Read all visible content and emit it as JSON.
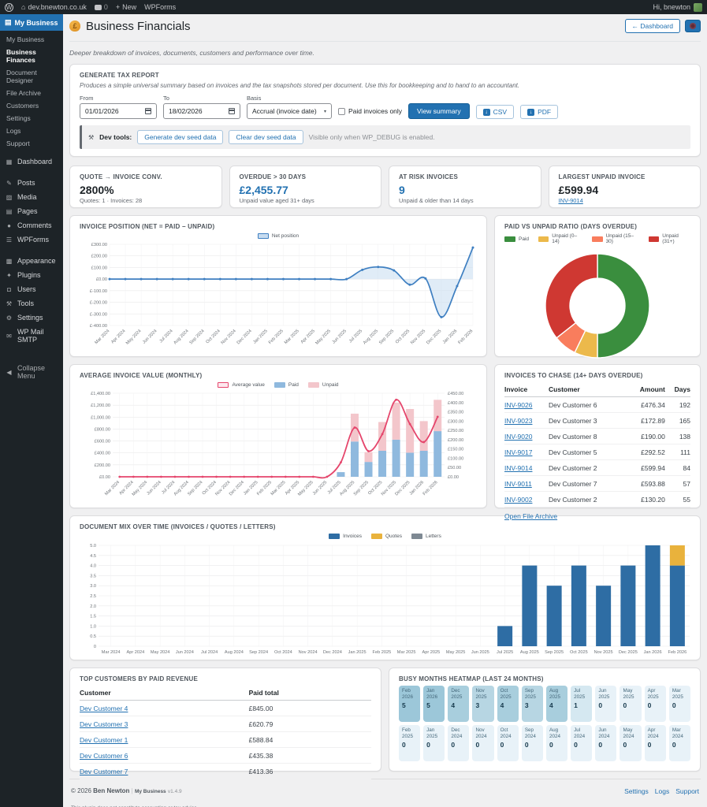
{
  "admin_bar": {
    "wp_logo": "W",
    "site_name": "dev.bnewton.co.uk",
    "comments_count": "0",
    "new_label": "New",
    "wpforms_label": "WPForms",
    "greeting": "Hi, bnewton"
  },
  "sidebar": {
    "top_item": "My Business",
    "submenu": [
      "My Business",
      "Business Finances",
      "Document Designer",
      "File Archive",
      "Customers",
      "Settings",
      "Logs",
      "Support"
    ],
    "current_submenu": "Business Finances",
    "items": [
      {
        "label": "Dashboard",
        "icon": "dashboard-icon",
        "glyph": "▦",
        "group_gap_before": false
      },
      {
        "label": "Posts",
        "icon": "posts-icon",
        "glyph": "✎",
        "group_gap_before": true
      },
      {
        "label": "Media",
        "icon": "media-icon",
        "glyph": "▨",
        "group_gap_before": false
      },
      {
        "label": "Pages",
        "icon": "pages-icon",
        "glyph": "▤",
        "group_gap_before": false
      },
      {
        "label": "Comments",
        "icon": "comments-icon",
        "glyph": "●",
        "group_gap_before": false
      },
      {
        "label": "WPForms",
        "icon": "wpforms-icon",
        "glyph": "☰",
        "group_gap_before": false
      },
      {
        "label": "Appearance",
        "icon": "appearance-icon",
        "glyph": "▩",
        "group_gap_before": true
      },
      {
        "label": "Plugins",
        "icon": "plugins-icon",
        "glyph": "✦",
        "group_gap_before": false
      },
      {
        "label": "Users",
        "icon": "users-icon",
        "glyph": "◘",
        "group_gap_before": false
      },
      {
        "label": "Tools",
        "icon": "tools-icon",
        "glyph": "⚒",
        "group_gap_before": false
      },
      {
        "label": "Settings",
        "icon": "settings-icon",
        "glyph": "⚙",
        "group_gap_before": false
      },
      {
        "label": "WP Mail SMTP",
        "icon": "mail-icon",
        "glyph": "✉",
        "group_gap_before": false
      },
      {
        "label": "Collapse Menu",
        "icon": "collapse-icon",
        "glyph": "◀",
        "group_gap_before": true
      }
    ]
  },
  "header": {
    "title": "Business Financials",
    "money_icon_glyph": "£",
    "dashboard_button": "← Dashboard"
  },
  "intro_text": "Deeper breakdown of invoices, documents, customers and performance over time.",
  "tax_report": {
    "title": "GENERATE TAX REPORT",
    "description": "Produces a simple universal summary based on invoices and the tax snapshots stored per document. Use this for bookkeeping and to hand to an accountant.",
    "from_label": "From",
    "from_value": "01/01/2026",
    "to_label": "To",
    "to_value": "18/02/2026",
    "basis_label": "Basis",
    "basis_value": "Accrual (invoice date)",
    "paid_only_label": "Paid invoices only",
    "view_summary_button": "View summary",
    "csv_button": "CSV",
    "pdf_button": "PDF",
    "dev_tools_label": "Dev tools:",
    "generate_seed_button": "Generate dev seed data",
    "clear_seed_button": "Clear dev seed data",
    "dev_note": "Visible only when WP_DEBUG is enabled."
  },
  "kpis": [
    {
      "title": "QUOTE → INVOICE CONV.",
      "value": "2800%",
      "sub": "Quotes: 1 · Invoices: 28",
      "value_color": "#1d2327"
    },
    {
      "title": "OVERDUE > 30 DAYS",
      "value": "£2,455.77",
      "sub": "Unpaid value aged 31+ days",
      "value_color": "#2271b1"
    },
    {
      "title": "AT RISK INVOICES",
      "value": "9",
      "sub": "Unpaid & older than 14 days",
      "value_color": "#2271b1"
    },
    {
      "title": "LARGEST UNPAID INVOICE",
      "value": "£599.94",
      "sub_link": "INV-9014",
      "value_color": "#1d2327"
    }
  ],
  "chart_data": [
    {
      "id": "net_position",
      "type": "line",
      "title": "INVOICE POSITION (NET = PAID − UNPAID)",
      "legend": [
        "Net position"
      ],
      "x": [
        "Mar 2024",
        "Apr 2024",
        "May 2024",
        "Jun 2024",
        "Jul 2024",
        "Aug 2024",
        "Sep 2024",
        "Oct 2024",
        "Nov 2024",
        "Dec 2024",
        "Jan 2025",
        "Feb 2025",
        "Mar 2025",
        "Apr 2025",
        "May 2025",
        "Jun 2025",
        "Jul 2025",
        "Aug 2025",
        "Sep 2025",
        "Oct 2025",
        "Nov 2025",
        "Dec 2025",
        "Jan 2026",
        "Feb 2026"
      ],
      "values": [
        0,
        0,
        0,
        0,
        0,
        0,
        0,
        0,
        0,
        0,
        0,
        0,
        0,
        0,
        0,
        0,
        80,
        105,
        75,
        -48,
        5,
        -328,
        -60,
        272
      ],
      "ylim": [
        -400,
        300
      ],
      "ytick": 100,
      "line_color": "#3e7fc1",
      "fill_color": "#c7dcf0"
    },
    {
      "id": "paid_ratio",
      "type": "pie",
      "title": "PAID VS UNPAID RATIO (DAYS OVERDUE)",
      "labels": [
        "Paid",
        "Unpaid (0–14)",
        "Unpaid (15–30)",
        "Unpaid (31+)"
      ],
      "values_pct": [
        50,
        7.2,
        7.2,
        35.6
      ],
      "colors": [
        "#3a8e3e",
        "#ecb94b",
        "#f97d5d",
        "#cf3832"
      ],
      "donut_hole_ratio": 0.53
    },
    {
      "id": "avg_invoice_value",
      "type": "bar+line",
      "title": "AVERAGE INVOICE VALUE (MONTHLY)",
      "categories": [
        "Mar 2024",
        "Apr 2024",
        "May 2024",
        "Jun 2024",
        "Jul 2024",
        "Aug 2024",
        "Sep 2024",
        "Oct 2024",
        "Nov 2024",
        "Dec 2024",
        "Jan 2025",
        "Feb 2025",
        "Mar 2025",
        "Apr 2025",
        "May 2025",
        "Jun 2025",
        "Jul 2025",
        "Aug 2025",
        "Sep 2025",
        "Oct 2025",
        "Nov 2025",
        "Dec 2025",
        "Jan 2026",
        "Feb 2026"
      ],
      "series": [
        {
          "name": "Average value",
          "axis": "right",
          "kind": "line",
          "color": "#e5466c",
          "values": [
            0,
            0,
            0,
            0,
            0,
            0,
            0,
            0,
            0,
            0,
            0,
            0,
            0,
            0,
            0,
            0,
            78,
            265,
            138,
            230,
            415,
            284,
            187,
            323
          ]
        },
        {
          "name": "Paid",
          "axis": "left",
          "kind": "bar",
          "color": "#8fb9de",
          "values": [
            0,
            0,
            0,
            0,
            0,
            0,
            0,
            0,
            0,
            0,
            0,
            0,
            0,
            0,
            0,
            0,
            78,
            591,
            249,
            436,
            622,
            404,
            436,
            765
          ]
        },
        {
          "name": "Unpaid",
          "axis": "left",
          "kind": "bar",
          "color": "#f3c6cb",
          "values": [
            0,
            0,
            0,
            0,
            0,
            0,
            0,
            0,
            0,
            0,
            0,
            0,
            0,
            0,
            0,
            0,
            0,
            467,
            165,
            482,
            622,
            732,
            497,
            525
          ]
        }
      ],
      "ylim_left": [
        0,
        1400
      ],
      "ytick_left": 200,
      "ylim_right": [
        0,
        450
      ],
      "ytick_right": 50
    },
    {
      "id": "doc_mix",
      "type": "bar",
      "title": "DOCUMENT MIX OVER TIME (INVOICES / QUOTES / LETTERS)",
      "categories": [
        "Mar 2024",
        "Apr 2024",
        "May 2024",
        "Jun 2024",
        "Jul 2024",
        "Aug 2024",
        "Sep 2024",
        "Oct 2024",
        "Nov 2024",
        "Dec 2024",
        "Jan 2025",
        "Feb 2025",
        "Mar 2025",
        "Apr 2025",
        "May 2025",
        "Jun 2025",
        "Jul 2025",
        "Aug 2025",
        "Sep 2025",
        "Oct 2025",
        "Nov 2025",
        "Dec 2025",
        "Jan 2026",
        "Feb 2026"
      ],
      "series": [
        {
          "name": "Invoices",
          "color": "#2e6da4",
          "values": [
            0,
            0,
            0,
            0,
            0,
            0,
            0,
            0,
            0,
            0,
            0,
            0,
            0,
            0,
            0,
            0,
            1,
            4,
            3,
            4,
            3,
            4,
            5,
            4
          ]
        },
        {
          "name": "Quotes",
          "color": "#e9b23c",
          "values": [
            0,
            0,
            0,
            0,
            0,
            0,
            0,
            0,
            0,
            0,
            0,
            0,
            0,
            0,
            0,
            0,
            0,
            0,
            0,
            0,
            0,
            0,
            0,
            1
          ]
        },
        {
          "name": "Letters",
          "color": "#7e8993",
          "values": [
            0,
            0,
            0,
            0,
            0,
            0,
            0,
            0,
            0,
            0,
            0,
            0,
            0,
            0,
            0,
            0,
            0,
            0,
            0,
            0,
            0,
            0,
            0,
            0
          ]
        }
      ],
      "ylim": [
        0,
        5
      ],
      "ytick": 0.5,
      "stacked": true
    }
  ],
  "invoices_to_chase": {
    "title": "INVOICES TO CHASE (14+ DAYS OVERDUE)",
    "headers": [
      "Invoice",
      "Customer",
      "Amount",
      "Days"
    ],
    "rows": [
      {
        "invoice": "INV-9026",
        "customer": "Dev Customer 6",
        "amount": "£476.34",
        "days": "192"
      },
      {
        "invoice": "INV-9023",
        "customer": "Dev Customer 3",
        "amount": "£172.89",
        "days": "165"
      },
      {
        "invoice": "INV-9020",
        "customer": "Dev Customer 8",
        "amount": "£190.00",
        "days": "138"
      },
      {
        "invoice": "INV-9017",
        "customer": "Dev Customer 5",
        "amount": "£292.52",
        "days": "111"
      },
      {
        "invoice": "INV-9014",
        "customer": "Dev Customer 2",
        "amount": "£599.94",
        "days": "84"
      },
      {
        "invoice": "INV-9011",
        "customer": "Dev Customer 7",
        "amount": "£593.88",
        "days": "57"
      },
      {
        "invoice": "INV-9002",
        "customer": "Dev Customer 2",
        "amount": "£130.20",
        "days": "55"
      }
    ],
    "footer_link": "Open File Archive"
  },
  "top_customers": {
    "title": "TOP CUSTOMERS BY PAID REVENUE",
    "headers": [
      "Customer",
      "Paid total"
    ],
    "rows": [
      {
        "customer": "Dev Customer 4",
        "paid_total": "£845.00"
      },
      {
        "customer": "Dev Customer 3",
        "paid_total": "£620.79"
      },
      {
        "customer": "Dev Customer 1",
        "paid_total": "£588.84"
      },
      {
        "customer": "Dev Customer 6",
        "paid_total": "£435.38"
      },
      {
        "customer": "Dev Customer 7",
        "paid_total": "£413.36"
      }
    ]
  },
  "heatmap": {
    "title": "BUSY MONTHS HEATMAP (LAST 24 MONTHS)",
    "colors": {
      "5": "#9cc7d9",
      "4": "#a8cedd",
      "3": "#b7d6e3",
      "1": "#d5e8f1",
      "0": "#e8f2f8"
    },
    "cells": [
      {
        "label": "Feb 2026",
        "value": 5
      },
      {
        "label": "Jan 2026",
        "value": 5
      },
      {
        "label": "Dec 2025",
        "value": 4
      },
      {
        "label": "Nov 2025",
        "value": 3
      },
      {
        "label": "Oct 2025",
        "value": 4
      },
      {
        "label": "Sep 2025",
        "value": 3
      },
      {
        "label": "Aug 2025",
        "value": 4
      },
      {
        "label": "Jul 2025",
        "value": 1
      },
      {
        "label": "Jun 2025",
        "value": 0
      },
      {
        "label": "May 2025",
        "value": 0
      },
      {
        "label": "Apr 2025",
        "value": 0
      },
      {
        "label": "Mar 2025",
        "value": 0
      },
      {
        "label": "Feb 2025",
        "value": 0
      },
      {
        "label": "Jan 2025",
        "value": 0
      },
      {
        "label": "Dec 2024",
        "value": 0
      },
      {
        "label": "Nov 2024",
        "value": 0
      },
      {
        "label": "Oct 2024",
        "value": 0
      },
      {
        "label": "Sep 2024",
        "value": 0
      },
      {
        "label": "Aug 2024",
        "value": 0
      },
      {
        "label": "Jul 2024",
        "value": 0
      },
      {
        "label": "Jun 2024",
        "value": 0
      },
      {
        "label": "May 2024",
        "value": 0
      },
      {
        "label": "Apr 2024",
        "value": 0
      },
      {
        "label": "Mar 2024",
        "value": 0
      }
    ]
  },
  "footer": {
    "copyright_prefix": "© 2026",
    "author": "Ben Newton",
    "separator": "|",
    "plugin_name": "My Business",
    "version": "v1.4.9",
    "links": [
      "Settings",
      "Logs",
      "Support"
    ],
    "disclaimer_line1": "This plugin does not constitute accounting or tax advice.",
    "disclaimer_line2": "Users are responsible for verifying all data before submitting tax returns."
  }
}
